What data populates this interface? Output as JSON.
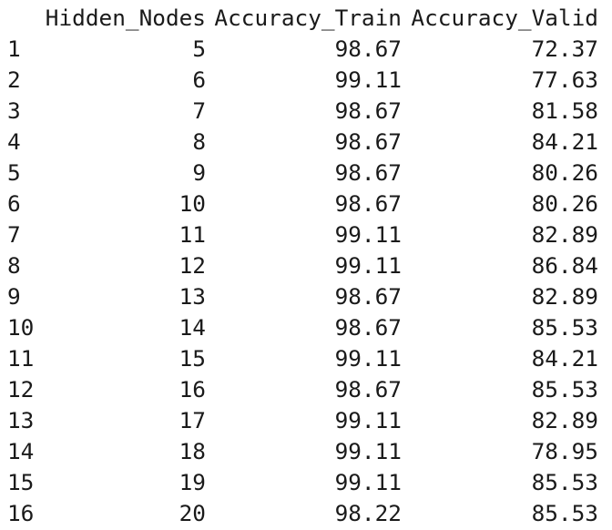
{
  "table": {
    "columns": [
      "Hidden_Nodes",
      "Accuracy_Train",
      "Accuracy_Valid"
    ],
    "rows": [
      {
        "name": "1",
        "hidden": "5",
        "train": "98.67",
        "valid": "72.37"
      },
      {
        "name": "2",
        "hidden": "6",
        "train": "99.11",
        "valid": "77.63"
      },
      {
        "name": "3",
        "hidden": "7",
        "train": "98.67",
        "valid": "81.58"
      },
      {
        "name": "4",
        "hidden": "8",
        "train": "98.67",
        "valid": "84.21"
      },
      {
        "name": "5",
        "hidden": "9",
        "train": "98.67",
        "valid": "80.26"
      },
      {
        "name": "6",
        "hidden": "10",
        "train": "98.67",
        "valid": "80.26"
      },
      {
        "name": "7",
        "hidden": "11",
        "train": "99.11",
        "valid": "82.89"
      },
      {
        "name": "8",
        "hidden": "12",
        "train": "99.11",
        "valid": "86.84"
      },
      {
        "name": "9",
        "hidden": "13",
        "train": "98.67",
        "valid": "82.89"
      },
      {
        "name": "10",
        "hidden": "14",
        "train": "98.67",
        "valid": "85.53"
      },
      {
        "name": "11",
        "hidden": "15",
        "train": "99.11",
        "valid": "84.21"
      },
      {
        "name": "12",
        "hidden": "16",
        "train": "98.67",
        "valid": "85.53"
      },
      {
        "name": "13",
        "hidden": "17",
        "train": "99.11",
        "valid": "82.89"
      },
      {
        "name": "14",
        "hidden": "18",
        "train": "99.11",
        "valid": "78.95"
      },
      {
        "name": "15",
        "hidden": "19",
        "train": "99.11",
        "valid": "85.53"
      },
      {
        "name": "16",
        "hidden": "20",
        "train": "98.22",
        "valid": "85.53"
      }
    ]
  }
}
